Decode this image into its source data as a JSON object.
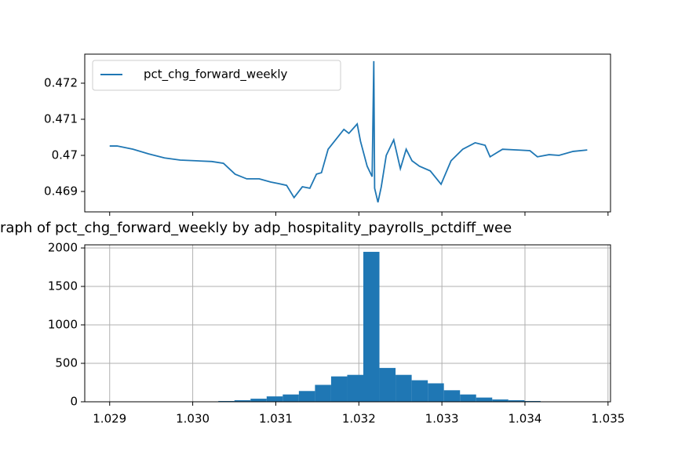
{
  "chart_data": [
    {
      "type": "line",
      "xlim": [
        1.0287,
        1.03503
      ],
      "xticks": [
        1.029,
        1.03,
        1.031,
        1.032,
        1.033,
        1.034,
        1.035
      ],
      "ylim": [
        0.468435,
        0.472804
      ],
      "yticks": [
        0.469,
        0.47,
        0.471,
        0.472
      ],
      "legend": "upper left",
      "grid": false,
      "series": [
        {
          "name": "pct_chg_forward_weekly",
          "color": "#1f77b4",
          "x": [
            1.029,
            1.02909,
            1.02928,
            1.02947,
            1.02966,
            1.02985,
            1.03004,
            1.03023,
            1.03037,
            1.03051,
            1.03065,
            1.0308,
            1.03094,
            1.03103,
            1.03113,
            1.03122,
            1.03132,
            1.03141,
            1.03149,
            1.03155,
            1.03163,
            1.03172,
            1.03182,
            1.03188,
            1.03198,
            1.03202,
            1.0321,
            1.03216,
            1.03218,
            1.03219,
            1.03223,
            1.03227,
            1.03233,
            1.03242,
            1.0325,
            1.03257,
            1.03264,
            1.03273,
            1.03286,
            1.03299,
            1.03311,
            1.03325,
            1.0334,
            1.03352,
            1.03358,
            1.03373,
            1.03391,
            1.03406,
            1.03415,
            1.03429,
            1.03441,
            1.03458,
            1.03475
          ],
          "values": [
            0.47026,
            0.47026,
            0.47017,
            0.47004,
            0.46993,
            0.46987,
            0.46985,
            0.46983,
            0.46978,
            0.46948,
            0.46935,
            0.46935,
            0.46926,
            0.46922,
            0.46917,
            0.46883,
            0.46913,
            0.46909,
            0.46948,
            0.46952,
            0.47017,
            0.47043,
            0.47072,
            0.47061,
            0.47087,
            0.47039,
            0.4697,
            0.46941,
            0.47261,
            0.46909,
            0.4687,
            0.46913,
            0.47,
            0.47043,
            0.46963,
            0.47017,
            0.46985,
            0.4697,
            0.46957,
            0.4692,
            0.46985,
            0.47017,
            0.47035,
            0.47028,
            0.46996,
            0.47017,
            0.47015,
            0.47013,
            0.46996,
            0.47002,
            0.47,
            0.47011,
            0.47015
          ]
        }
      ]
    },
    {
      "type": "histogram",
      "title": "raph of pct_chg_forward_weekly by adp_hospitality_payrolls_pctdiff_wee",
      "color": "#1f77b4",
      "grid": true,
      "xlim": [
        1.0287,
        1.03503
      ],
      "xticks": [
        1.029,
        {
          "value": 1.03,
          "label": "1.030"
        },
        1.031,
        1.032,
        1.033,
        1.034,
        1.035
      ],
      "ylim": [
        0,
        2041
      ],
      "yticks": [
        0,
        500,
        1000,
        1500,
        2000
      ],
      "bins": [
        1.02895,
        1.029144,
        1.029338,
        1.029532,
        1.029726,
        1.02992,
        1.030114,
        1.030308,
        1.030502,
        1.030696,
        1.03089,
        1.031084,
        1.031278,
        1.031472,
        1.031666,
        1.03186,
        1.032054,
        1.032248,
        1.032442,
        1.032636,
        1.03283,
        1.033024,
        1.033218,
        1.033412,
        1.033606,
        1.0338,
        1.033994,
        1.034188,
        1.034382,
        1.034576,
        1.03477
      ],
      "values": [
        1,
        0,
        0,
        0,
        1,
        2,
        3,
        10,
        20,
        40,
        70,
        95,
        140,
        220,
        330,
        350,
        1950,
        440,
        350,
        280,
        240,
        150,
        95,
        55,
        30,
        20,
        10,
        5,
        2,
        1
      ]
    }
  ]
}
